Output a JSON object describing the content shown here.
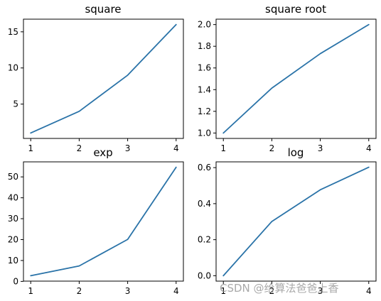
{
  "line_color": "#2a73a8",
  "watermark": "CSDN @给算法爸爸上香",
  "chart_data": [
    {
      "type": "line",
      "title": "square",
      "x": [
        1,
        2,
        3,
        4
      ],
      "series": [
        {
          "values": [
            1,
            4,
            9,
            16
          ]
        }
      ],
      "xlim": [
        0.85,
        4.15
      ],
      "ylim": [
        0.25,
        16.75
      ],
      "xticks": [
        1,
        2,
        3,
        4
      ],
      "yticks": [
        5,
        10,
        15
      ],
      "xtick_labels": [
        "1",
        "2",
        "3",
        "4"
      ],
      "ytick_labels": [
        "5",
        "10",
        "15"
      ],
      "grid": false
    },
    {
      "type": "line",
      "title": "square root",
      "x": [
        1,
        2,
        3,
        4
      ],
      "series": [
        {
          "values": [
            1.0,
            1.414,
            1.732,
            2.0
          ]
        }
      ],
      "xlim": [
        0.85,
        4.15
      ],
      "ylim": [
        0.95,
        2.05
      ],
      "xticks": [
        1,
        2,
        3,
        4
      ],
      "yticks": [
        1.0,
        1.2,
        1.4,
        1.6,
        1.8,
        2.0
      ],
      "xtick_labels": [
        "1",
        "2",
        "3",
        "4"
      ],
      "ytick_labels": [
        "1.0",
        "1.2",
        "1.4",
        "1.6",
        "1.8",
        "2.0"
      ],
      "grid": false
    },
    {
      "type": "line",
      "title": "exp",
      "x": [
        1,
        2,
        3,
        4
      ],
      "series": [
        {
          "values": [
            2.718,
            7.389,
            20.086,
            54.598
          ]
        }
      ],
      "xlim": [
        0.85,
        4.15
      ],
      "ylim": [
        0.13,
        57.19
      ],
      "xticks": [
        1,
        2,
        3,
        4
      ],
      "yticks": [
        0,
        10,
        20,
        30,
        40,
        50
      ],
      "xtick_labels": [
        "1",
        "2",
        "3",
        "4"
      ],
      "ytick_labels": [
        "0",
        "10",
        "20",
        "30",
        "40",
        "50"
      ],
      "grid": false
    },
    {
      "type": "line",
      "title": "log",
      "x": [
        1,
        2,
        3,
        4
      ],
      "series": [
        {
          "values": [
            0.0,
            0.301,
            0.477,
            0.602
          ]
        }
      ],
      "xlim": [
        0.85,
        4.15
      ],
      "ylim": [
        -0.03,
        0.632
      ],
      "xticks": [
        1,
        2,
        3,
        4
      ],
      "yticks": [
        0.0,
        0.2,
        0.4,
        0.6
      ],
      "xtick_labels": [
        "1",
        "2",
        "3",
        "4"
      ],
      "ytick_labels": [
        "0.0",
        "0.2",
        "0.4",
        "0.6"
      ],
      "grid": false
    }
  ]
}
